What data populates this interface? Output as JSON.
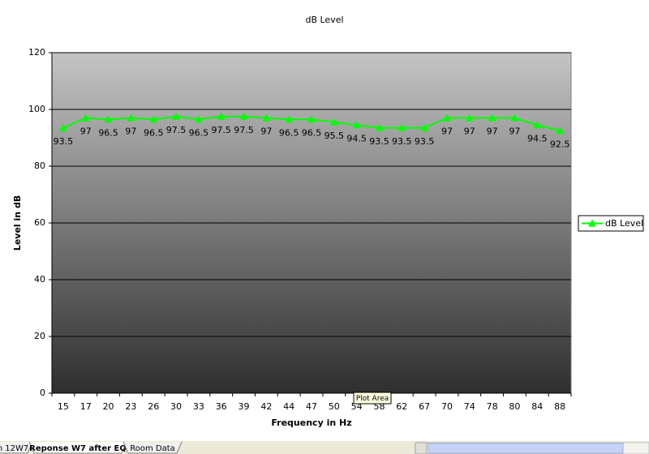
{
  "chart_data": {
    "type": "line",
    "title": "dB Level",
    "x_label": "Frequency in Hz",
    "y_label": "Level in dB",
    "categories": [
      "15",
      "17",
      "20",
      "23",
      "26",
      "30",
      "33",
      "36",
      "39",
      "42",
      "44",
      "47",
      "50",
      "54",
      "58",
      "62",
      "67",
      "70",
      "74",
      "78",
      "80",
      "84",
      "88"
    ],
    "series": [
      {
        "name": "dB Level",
        "color": "#00ff00",
        "values": [
          93.5,
          97,
          96.5,
          97,
          96.5,
          97.5,
          96.5,
          97.5,
          97.5,
          97,
          96.5,
          96.5,
          95.5,
          94.5,
          93.5,
          93.5,
          93.5,
          97,
          97,
          97,
          97,
          94.5,
          92.5
        ]
      }
    ],
    "ylim": [
      0,
      120
    ],
    "yticks": [
      0,
      20,
      40,
      60,
      80,
      100,
      120
    ],
    "grid": true,
    "legend": "right",
    "data_labels": true
  },
  "ui": {
    "tooltip": "Plot Area",
    "tabs": [
      "n 12W7",
      "Reponse W7 after EQ",
      "Room Data"
    ]
  }
}
